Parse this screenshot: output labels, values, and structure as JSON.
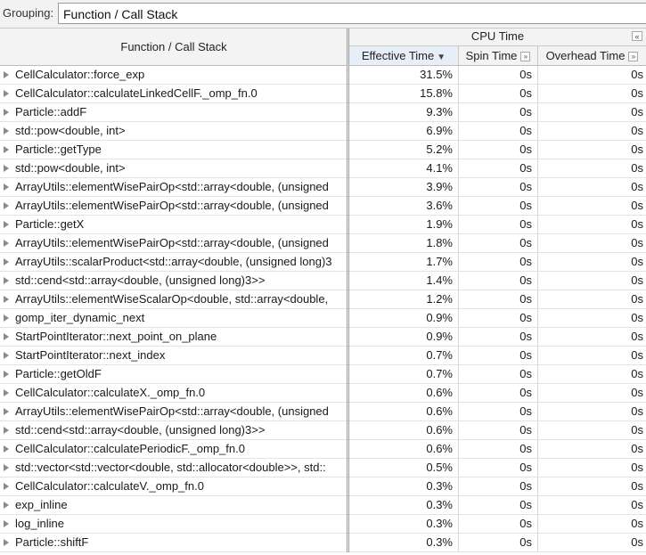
{
  "grouping": {
    "label": "Grouping:",
    "value": "Function / Call Stack"
  },
  "header": {
    "function_col": "Function / Call Stack",
    "group_label": "CPU Time",
    "collapse_glyph": "«",
    "columns": [
      {
        "label": "Effective Time",
        "sort": "▼",
        "expand": ""
      },
      {
        "label": "Spin Time",
        "sort": "",
        "expand": "»"
      },
      {
        "label": "Overhead Time",
        "sort": "",
        "expand": "»"
      }
    ]
  },
  "rows": [
    {
      "name": "CellCalculator::force_exp",
      "effective": "31.5%",
      "spin": "0s",
      "overhead": "0s"
    },
    {
      "name": "CellCalculator::calculateLinkedCellF._omp_fn.0",
      "effective": "15.8%",
      "spin": "0s",
      "overhead": "0s"
    },
    {
      "name": "Particle::addF",
      "effective": "9.3%",
      "spin": "0s",
      "overhead": "0s"
    },
    {
      "name": "std::pow<double, int>",
      "effective": "6.9%",
      "spin": "0s",
      "overhead": "0s"
    },
    {
      "name": "Particle::getType",
      "effective": "5.2%",
      "spin": "0s",
      "overhead": "0s"
    },
    {
      "name": "std::pow<double, int>",
      "effective": "4.1%",
      "spin": "0s",
      "overhead": "0s"
    },
    {
      "name": "ArrayUtils::elementWisePairOp<std::array<double, (unsigned",
      "effective": "3.9%",
      "spin": "0s",
      "overhead": "0s"
    },
    {
      "name": "ArrayUtils::elementWisePairOp<std::array<double, (unsigned",
      "effective": "3.6%",
      "spin": "0s",
      "overhead": "0s"
    },
    {
      "name": "Particle::getX",
      "effective": "1.9%",
      "spin": "0s",
      "overhead": "0s"
    },
    {
      "name": "ArrayUtils::elementWisePairOp<std::array<double, (unsigned",
      "effective": "1.8%",
      "spin": "0s",
      "overhead": "0s"
    },
    {
      "name": "ArrayUtils::scalarProduct<std::array<double, (unsigned long)3",
      "effective": "1.7%",
      "spin": "0s",
      "overhead": "0s"
    },
    {
      "name": "std::cend<std::array<double, (unsigned long)3>>",
      "effective": "1.4%",
      "spin": "0s",
      "overhead": "0s"
    },
    {
      "name": "ArrayUtils::elementWiseScalarOp<double, std::array<double,",
      "effective": "1.2%",
      "spin": "0s",
      "overhead": "0s"
    },
    {
      "name": "gomp_iter_dynamic_next",
      "effective": "0.9%",
      "spin": "0s",
      "overhead": "0s"
    },
    {
      "name": "StartPointIterator::next_point_on_plane",
      "effective": "0.9%",
      "spin": "0s",
      "overhead": "0s"
    },
    {
      "name": "StartPointIterator::next_index",
      "effective": "0.7%",
      "spin": "0s",
      "overhead": "0s"
    },
    {
      "name": "Particle::getOldF",
      "effective": "0.7%",
      "spin": "0s",
      "overhead": "0s"
    },
    {
      "name": "CellCalculator::calculateX._omp_fn.0",
      "effective": "0.6%",
      "spin": "0s",
      "overhead": "0s"
    },
    {
      "name": "ArrayUtils::elementWisePairOp<std::array<double, (unsigned",
      "effective": "0.6%",
      "spin": "0s",
      "overhead": "0s"
    },
    {
      "name": "std::cend<std::array<double, (unsigned long)3>>",
      "effective": "0.6%",
      "spin": "0s",
      "overhead": "0s"
    },
    {
      "name": "CellCalculator::calculatePeriodicF._omp_fn.0",
      "effective": "0.6%",
      "spin": "0s",
      "overhead": "0s"
    },
    {
      "name": "std::vector<std::vector<double, std::allocator<double>>, std::",
      "effective": "0.5%",
      "spin": "0s",
      "overhead": "0s"
    },
    {
      "name": "CellCalculator::calculateV._omp_fn.0",
      "effective": "0.3%",
      "spin": "0s",
      "overhead": "0s"
    },
    {
      "name": "exp_inline",
      "effective": "0.3%",
      "spin": "0s",
      "overhead": "0s"
    },
    {
      "name": "log_inline",
      "effective": "0.3%",
      "spin": "0s",
      "overhead": "0s"
    },
    {
      "name": "Particle::shiftF",
      "effective": "0.3%",
      "spin": "0s",
      "overhead": "0s"
    }
  ]
}
